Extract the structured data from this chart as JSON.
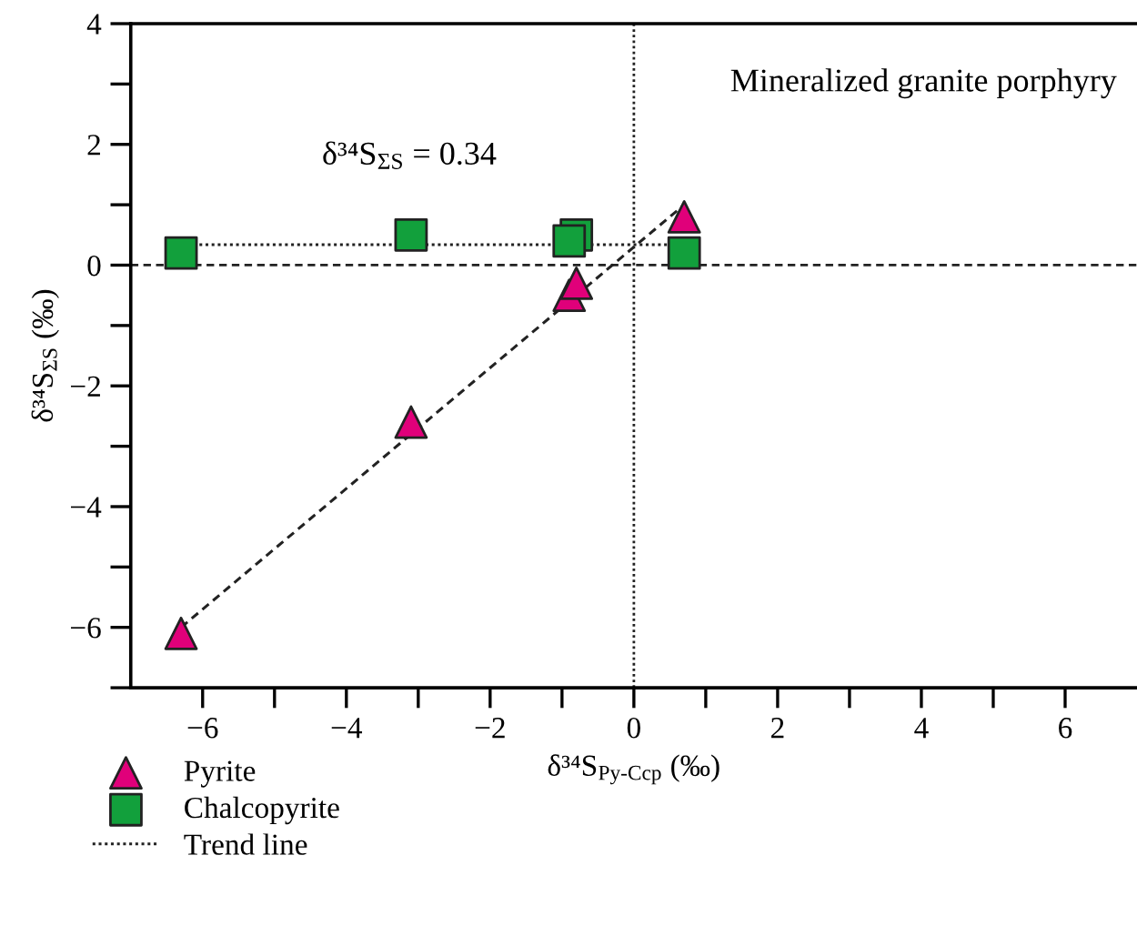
{
  "chart_data": {
    "type": "scatter",
    "xlabel": "δ³⁴S$_{Py-Ccp}$ (‰)",
    "ylabel": "δ³⁴S$_{ΣS}$ (‰)",
    "xlim": [
      -7,
      7
    ],
    "ylim": [
      -7,
      4
    ],
    "xticks": [
      -6,
      {
        "value": -5,
        "label": null
      },
      -4,
      {
        "value": -3,
        "label": null
      },
      -2,
      {
        "value": -1,
        "label": null
      },
      0,
      {
        "value": 1,
        "label": null
      },
      2,
      {
        "value": 3,
        "label": null
      },
      4,
      {
        "value": 5,
        "label": null
      },
      6
    ],
    "yticks": [
      {
        "value": -7,
        "label": null
      },
      -6,
      {
        "value": -5,
        "label": null
      },
      -4,
      {
        "value": -3,
        "label": null
      },
      -2,
      {
        "value": -1,
        "label": null
      },
      0,
      {
        "value": 1,
        "label": null
      },
      2,
      {
        "value": 3,
        "label": null
      },
      4
    ],
    "series": [
      {
        "name": "Pyrite",
        "marker": "triangle",
        "color": "#e0007a",
        "x": [
          -6.3,
          -3.1,
          -0.9,
          -0.8,
          0.7
        ],
        "values": [
          -6.1,
          -2.6,
          -0.5,
          -0.3,
          0.8
        ]
      },
      {
        "name": "Chalcopyrite",
        "marker": "square",
        "color": "#12a03c",
        "x": [
          -6.3,
          -3.1,
          -0.8,
          -0.9,
          0.7
        ],
        "values": [
          0.2,
          0.5,
          0.5,
          0.4,
          0.2
        ]
      },
      {
        "name": "Trend line",
        "type": "line",
        "line_style": "dotted",
        "color": "#222222",
        "x": [
          -6.3,
          0.7
        ],
        "values": [
          0.34,
          0.34
        ]
      },
      {
        "type": "line",
        "line_style": "dashed",
        "color": "#222222",
        "x": [
          -6.3,
          0.7
        ],
        "values": [
          -6.0,
          1.0
        ]
      }
    ],
    "ref_lines": [
      {
        "axis": "y",
        "value": 0,
        "line_style": "dashed",
        "color": "#222222"
      },
      {
        "axis": "x",
        "value": 0,
        "line_style": "dotted",
        "color": "#222222"
      }
    ],
    "annotations": [
      "δ³⁴S$_{ΣS}$ = 0.34",
      "Mineralized granite porphyry"
    ],
    "legend": "bottom left",
    "grid": false
  }
}
